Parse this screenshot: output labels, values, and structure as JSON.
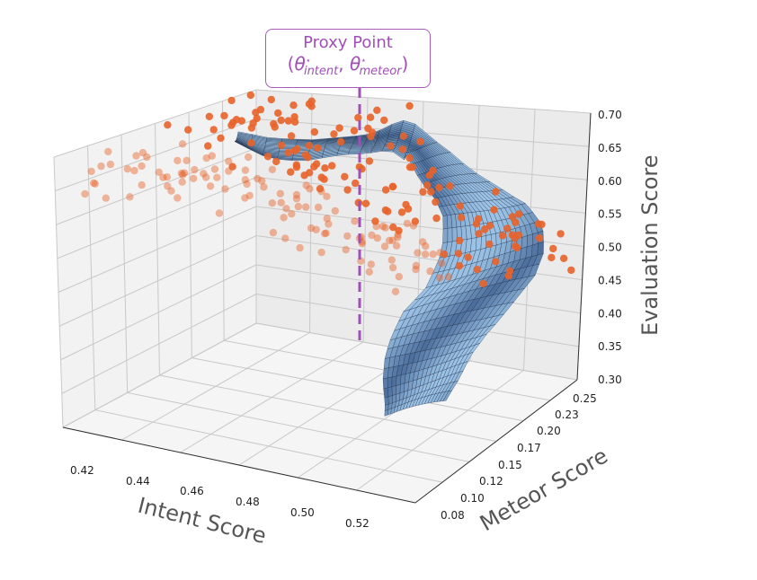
{
  "chart_data": {
    "type": "scatter",
    "subtype": "3d-surface-with-scatter",
    "xlabel": "Intent Score",
    "ylabel": "Meteor Score",
    "zlabel": "Evaluation Score",
    "xticks": [
      "0.42",
      "0.44",
      "0.46",
      "0.48",
      "0.50",
      "0.52"
    ],
    "yticks": [
      "0.08",
      "0.10",
      "0.12",
      "0.15",
      "0.17",
      "0.20",
      "0.23",
      "0.25"
    ],
    "zticks": [
      "0.30",
      "0.35",
      "0.40",
      "0.45",
      "0.50",
      "0.55",
      "0.60",
      "0.65",
      "0.70"
    ],
    "xlim": [
      0.41,
      0.53
    ],
    "ylim": [
      0.07,
      0.26
    ],
    "zlim": [
      0.3,
      0.7
    ],
    "grid": true,
    "annotation": {
      "title": "Proxy Point",
      "formula_prefix": "(",
      "theta": "θ",
      "star": "⋆",
      "sub1": "intent",
      "sep": ", ",
      "sub2": "meteor",
      "formula_suffix": ")"
    },
    "colors": {
      "points": "#e8632a",
      "surface_light": "#9cc3e6",
      "surface_dark": "#1f3f73",
      "mesh": "#1b2a45",
      "proxy": "#a04fb6"
    }
  }
}
